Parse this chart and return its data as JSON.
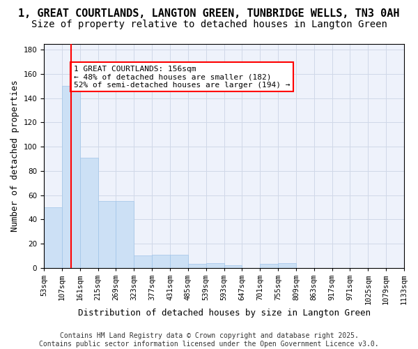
{
  "title_line1": "1, GREAT COURTLANDS, LANGTON GREEN, TUNBRIDGE WELLS, TN3 0AH",
  "title_line2": "Size of property relative to detached houses in Langton Green",
  "xlabel": "Distribution of detached houses by size in Langton Green",
  "ylabel": "Number of detached properties",
  "bar_values": [
    50,
    150,
    91,
    55,
    55,
    10,
    11,
    11,
    3,
    4,
    2,
    0,
    3,
    4,
    0,
    0,
    0,
    0,
    0,
    0
  ],
  "bin_labels": [
    "53sqm",
    "107sqm",
    "161sqm",
    "215sqm",
    "269sqm",
    "323sqm",
    "377sqm",
    "431sqm",
    "485sqm",
    "539sqm",
    "593sqm",
    "647sqm",
    "701sqm",
    "755sqm",
    "809sqm",
    "863sqm",
    "917sqm",
    "971sqm",
    "1025sqm",
    "1079sqm",
    "1133sqm"
  ],
  "bar_color": "#cce0f5",
  "bar_edge_color": "#a0c4e8",
  "redline_x": 1.5,
  "annotation_text": "1 GREAT COURTLANDS: 156sqm\n← 48% of detached houses are smaller (182)\n52% of semi-detached houses are larger (194) →",
  "annotation_box_color": "white",
  "annotation_box_edge": "red",
  "ylim": [
    0,
    185
  ],
  "yticks": [
    0,
    20,
    40,
    60,
    80,
    100,
    120,
    140,
    160,
    180
  ],
  "grid_color": "#d0d8e8",
  "background_color": "#eef2fb",
  "footer_line1": "Contains HM Land Registry data © Crown copyright and database right 2025.",
  "footer_line2": "Contains public sector information licensed under the Open Government Licence v3.0.",
  "title_fontsize": 11,
  "subtitle_fontsize": 10,
  "axis_label_fontsize": 9,
  "tick_fontsize": 7.5,
  "annotation_fontsize": 8,
  "footer_fontsize": 7
}
